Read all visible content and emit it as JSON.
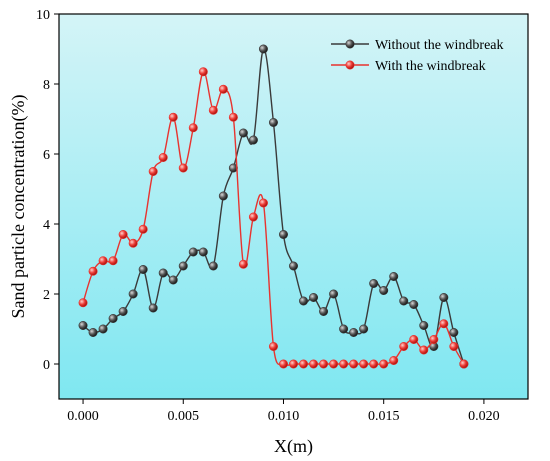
{
  "chart_data": {
    "type": "line",
    "xlabel": "X(m)",
    "ylabel": "Sand particle concentration(%)",
    "xlim": [
      -0.0012,
      0.0222
    ],
    "ylim": [
      -1,
      10
    ],
    "xticks": [
      0.0,
      0.005,
      0.01,
      0.015,
      0.02
    ],
    "xtick_labels": [
      "0.000",
      "0.005",
      "0.010",
      "0.015",
      "0.020"
    ],
    "yticks": [
      0,
      2,
      4,
      6,
      8,
      10
    ],
    "ytick_labels": [
      "0",
      "2",
      "4",
      "6",
      "8",
      "10"
    ],
    "legend_position": "top-right",
    "background_gradient": [
      "#d4f4f7",
      "#7fe7f1"
    ],
    "series": [
      {
        "name": "Without the windbreak",
        "color": "#3a3a3a",
        "x": [
          0.0,
          0.0005,
          0.001,
          0.0015,
          0.002,
          0.0025,
          0.003,
          0.0035,
          0.004,
          0.0045,
          0.005,
          0.0055,
          0.006,
          0.0065,
          0.007,
          0.0075,
          0.008,
          0.0085,
          0.009,
          0.0095,
          0.01,
          0.0105,
          0.011,
          0.0115,
          0.012,
          0.0125,
          0.013,
          0.0135,
          0.014,
          0.0145,
          0.015,
          0.0155,
          0.016,
          0.0165,
          0.017,
          0.0175,
          0.018,
          0.0185,
          0.019
        ],
        "y": [
          1.1,
          0.9,
          1.0,
          1.3,
          1.5,
          2.0,
          2.7,
          1.6,
          2.6,
          2.4,
          2.8,
          3.2,
          3.2,
          2.8,
          4.8,
          5.6,
          6.6,
          6.4,
          9.0,
          6.9,
          3.7,
          2.8,
          1.8,
          1.9,
          1.5,
          2.0,
          1.0,
          0.9,
          1.0,
          2.3,
          2.1,
          2.5,
          1.8,
          1.7,
          1.1,
          0.5,
          1.9,
          0.9,
          0.0
        ]
      },
      {
        "name": "With the windbreak",
        "color": "#e8332f",
        "x": [
          0.0,
          0.0005,
          0.001,
          0.0015,
          0.002,
          0.0025,
          0.003,
          0.0035,
          0.004,
          0.0045,
          0.005,
          0.0055,
          0.006,
          0.0065,
          0.007,
          0.0075,
          0.008,
          0.0085,
          0.009,
          0.0095,
          0.01,
          0.0105,
          0.011,
          0.0115,
          0.012,
          0.0125,
          0.013,
          0.0135,
          0.014,
          0.0145,
          0.015,
          0.0155,
          0.016,
          0.0165,
          0.017,
          0.0175,
          0.018,
          0.0185,
          0.019
        ],
        "y": [
          1.75,
          2.65,
          2.95,
          2.95,
          3.7,
          3.45,
          3.85,
          5.5,
          5.9,
          7.05,
          5.6,
          6.75,
          8.35,
          7.25,
          7.85,
          7.05,
          2.85,
          4.2,
          4.6,
          0.5,
          0.0,
          0.0,
          0.0,
          0.0,
          0.0,
          0.0,
          0.0,
          0.0,
          0.0,
          0.0,
          0.0,
          0.1,
          0.5,
          0.7,
          0.4,
          0.7,
          1.15,
          0.5,
          0.0
        ]
      }
    ]
  }
}
